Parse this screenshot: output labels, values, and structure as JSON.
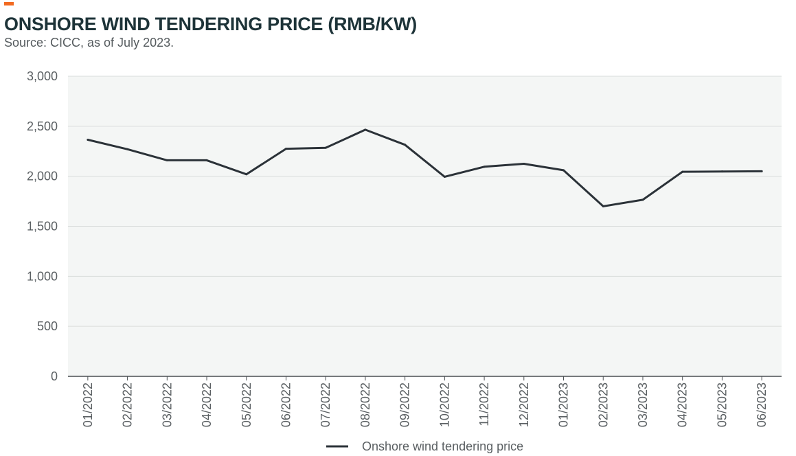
{
  "header": {
    "title": "ONSHORE WIND TENDERING PRICE (RMB/KW)",
    "subtitle": "Source: CICC, as of July 2023."
  },
  "colors": {
    "accent": "#f26a21",
    "title": "#1d3338",
    "line": "#2b3238",
    "plot_bg": "#f4f6f5",
    "grid": "#d9dcdb"
  },
  "chart_data": {
    "type": "line",
    "title": "ONSHORE WIND TENDERING PRICE (RMB/KW)",
    "categories": [
      "01/2022",
      "02/2022",
      "03/2022",
      "04/2022",
      "05/2022",
      "06/2022",
      "07/2022",
      "08/2022",
      "09/2022",
      "10/2022",
      "11/2022",
      "12/2022",
      "01/2023",
      "02/2023",
      "03/2023",
      "04/2023",
      "05/2023",
      "06/2023"
    ],
    "series": [
      {
        "name": "Onshore wind tendering price",
        "values": [
          2365,
          2270,
          2160,
          2160,
          2020,
          2275,
          2285,
          2465,
          2315,
          1995,
          2095,
          2125,
          2060,
          1700,
          1765,
          2045,
          2048,
          2050
        ]
      }
    ],
    "ylim": [
      0,
      3000
    ],
    "yticks": [
      0,
      500,
      1000,
      1500,
      2000,
      2500,
      3000
    ],
    "ytick_labels": [
      "0",
      "500",
      "1,000",
      "1,500",
      "2,000",
      "2,500",
      "3,000"
    ],
    "grid": true,
    "legend": "bottom-center"
  }
}
